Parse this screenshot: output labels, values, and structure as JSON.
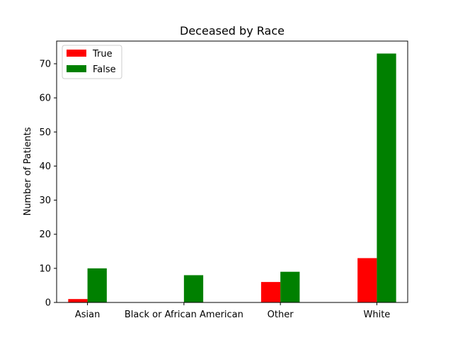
{
  "chart_data": {
    "type": "bar",
    "title": "Deceased by Race",
    "xlabel": "",
    "ylabel": "Number of Patients",
    "categories": [
      "Asian",
      "Black or African American",
      "Other",
      "White"
    ],
    "series": [
      {
        "name": "True",
        "values": [
          1,
          0,
          6,
          13
        ],
        "color": "#ff0000"
      },
      {
        "name": "False",
        "values": [
          10,
          8,
          9,
          73
        ],
        "color": "#008000"
      }
    ],
    "ylim": [
      0,
      76.65
    ],
    "yticks": [
      0,
      10,
      20,
      30,
      40,
      50,
      60,
      70
    ],
    "legend_position": "top-left",
    "grid": false
  }
}
